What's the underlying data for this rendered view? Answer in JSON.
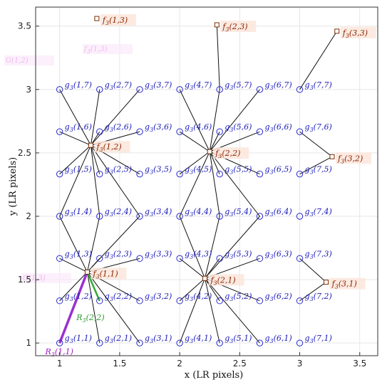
{
  "chart_data": {
    "type": "scatter",
    "title": "",
    "xlabel": "x (LR pixels)",
    "ylabel": "y (LR pixels)",
    "xlim": [
      0.8,
      3.65
    ],
    "ylim": [
      0.9,
      3.65
    ],
    "xticks": [
      "1",
      "1.5",
      "2",
      "2.5",
      "3",
      "3.5"
    ],
    "yticks": [
      "1",
      "1.5",
      "2",
      "2.5",
      "3",
      "3.5"
    ],
    "grid": true,
    "colors": {
      "g_marker": "#2a2acf",
      "g_label": "#1b1bb8",
      "f_marker": "#7a2d00",
      "f_label": "#8b2500",
      "f_label_bg": "#fbe6dc",
      "line": "#111111",
      "r_green": "#33aa33",
      "r_purple": "#9b30d0"
    },
    "g_points": [
      {
        "label": "g_3(1,1)",
        "x": 1.0,
        "y": 1.0
      },
      {
        "label": "g_3(1,2)",
        "x": 1.0,
        "y": 1.333
      },
      {
        "label": "g_3(1,3)",
        "x": 1.0,
        "y": 1.667
      },
      {
        "label": "g_3(1,4)",
        "x": 1.0,
        "y": 2.0
      },
      {
        "label": "g_3(1,5)",
        "x": 1.0,
        "y": 2.333
      },
      {
        "label": "g_3(1,6)",
        "x": 1.0,
        "y": 2.667
      },
      {
        "label": "g_3(1,7)",
        "x": 1.0,
        "y": 3.0
      },
      {
        "label": "g_3(2,1)",
        "x": 1.333,
        "y": 1.0
      },
      {
        "label": "g_3(2,2)",
        "x": 1.333,
        "y": 1.333
      },
      {
        "label": "g_3(2,3)",
        "x": 1.333,
        "y": 1.667
      },
      {
        "label": "g_3(2,4)",
        "x": 1.333,
        "y": 2.0
      },
      {
        "label": "g_3(2,5)",
        "x": 1.333,
        "y": 2.333
      },
      {
        "label": "g_3(2,6)",
        "x": 1.333,
        "y": 2.667
      },
      {
        "label": "g_3(2,7)",
        "x": 1.333,
        "y": 3.0
      },
      {
        "label": "g_3(3,1)",
        "x": 1.667,
        "y": 1.0
      },
      {
        "label": "g_3(3,2)",
        "x": 1.667,
        "y": 1.333
      },
      {
        "label": "g_3(3,3)",
        "x": 1.667,
        "y": 1.667
      },
      {
        "label": "g_3(3,4)",
        "x": 1.667,
        "y": 2.0
      },
      {
        "label": "g_3(3,5)",
        "x": 1.667,
        "y": 2.333
      },
      {
        "label": "g_3(3,6)",
        "x": 1.667,
        "y": 2.667
      },
      {
        "label": "g_3(3,7)",
        "x": 1.667,
        "y": 3.0
      },
      {
        "label": "g_3(4,1)",
        "x": 2.0,
        "y": 1.0
      },
      {
        "label": "g_3(4,2)",
        "x": 2.0,
        "y": 1.333
      },
      {
        "label": "g_3(4,3)",
        "x": 2.0,
        "y": 1.667
      },
      {
        "label": "g_3(4,4)",
        "x": 2.0,
        "y": 2.0
      },
      {
        "label": "g_3(4,5)",
        "x": 2.0,
        "y": 2.333
      },
      {
        "label": "g_3(4,6)",
        "x": 2.0,
        "y": 2.667
      },
      {
        "label": "g_3(4,7)",
        "x": 2.0,
        "y": 3.0
      },
      {
        "label": "g_3(5,1)",
        "x": 2.333,
        "y": 1.0
      },
      {
        "label": "g_3(5,2)",
        "x": 2.333,
        "y": 1.333
      },
      {
        "label": "g_3(5,3)",
        "x": 2.333,
        "y": 1.667
      },
      {
        "label": "g_3(5,4)",
        "x": 2.333,
        "y": 2.0
      },
      {
        "label": "g_3(5,5)",
        "x": 2.333,
        "y": 2.333
      },
      {
        "label": "g_3(5,6)",
        "x": 2.333,
        "y": 2.667
      },
      {
        "label": "g_3(5,7)",
        "x": 2.333,
        "y": 3.0
      },
      {
        "label": "g_3(6,1)",
        "x": 2.667,
        "y": 1.0
      },
      {
        "label": "g_3(6,2)",
        "x": 2.667,
        "y": 1.333
      },
      {
        "label": "g_3(6,3)",
        "x": 2.667,
        "y": 1.667
      },
      {
        "label": "g_3(6,4)",
        "x": 2.667,
        "y": 2.0
      },
      {
        "label": "g_3(6,5)",
        "x": 2.667,
        "y": 2.333
      },
      {
        "label": "g_3(6,6)",
        "x": 2.667,
        "y": 2.667
      },
      {
        "label": "g_3(6,7)",
        "x": 2.667,
        "y": 3.0
      },
      {
        "label": "g_3(7,1)",
        "x": 3.0,
        "y": 1.0
      },
      {
        "label": "g_3(7,2)",
        "x": 3.0,
        "y": 1.333
      },
      {
        "label": "g_3(7,3)",
        "x": 3.0,
        "y": 1.667
      },
      {
        "label": "g_3(7,4)",
        "x": 3.0,
        "y": 2.0
      },
      {
        "label": "g_3(7,5)",
        "x": 3.0,
        "y": 2.333
      },
      {
        "label": "g_3(7,6)",
        "x": 3.0,
        "y": 2.667
      },
      {
        "label": "g_3(7,7)",
        "x": 3.0,
        "y": 3.0
      }
    ],
    "f_points": [
      {
        "label": "f_3(1,1)",
        "x": 1.23,
        "y": 1.56
      },
      {
        "label": "f_3(2,1)",
        "x": 2.21,
        "y": 1.51
      },
      {
        "label": "f_3(3,1)",
        "x": 3.22,
        "y": 1.48
      },
      {
        "label": "f_3(1,2)",
        "x": 1.26,
        "y": 2.56
      },
      {
        "label": "f_3(2,2)",
        "x": 2.25,
        "y": 2.51
      },
      {
        "label": "f_3(3,2)",
        "x": 3.27,
        "y": 2.47
      },
      {
        "label": "f_3(1,3)",
        "x": 1.31,
        "y": 3.56
      },
      {
        "label": "f_3(2,3)",
        "x": 2.31,
        "y": 3.51
      },
      {
        "label": "f_3(3,3)",
        "x": 3.31,
        "y": 3.46
      }
    ],
    "connections": [
      {
        "f": 0,
        "g": [
          0,
          1,
          2,
          3,
          7,
          8,
          9,
          10,
          14,
          15,
          16,
          17
        ]
      },
      {
        "f": 1,
        "g": [
          21,
          22,
          23,
          24,
          28,
          29,
          30,
          31,
          35,
          36,
          37,
          38
        ]
      },
      {
        "f": 2,
        "g": [
          43,
          44
        ]
      },
      {
        "f": 3,
        "g": [
          3,
          4,
          5,
          6,
          10,
          11,
          12,
          13,
          17,
          18,
          19,
          20
        ]
      },
      {
        "f": 4,
        "g": [
          24,
          25,
          26,
          27,
          31,
          32,
          33,
          34,
          38,
          39,
          40,
          41
        ]
      },
      {
        "f": 5,
        "g": [
          46,
          47
        ]
      },
      {
        "f": 6,
        "g": []
      },
      {
        "f": 7,
        "g": [
          34
        ]
      },
      {
        "f": 8,
        "g": [
          48
        ]
      }
    ],
    "highlights": [
      {
        "label": "R_3(2,2)",
        "from": [
          1.23,
          1.56
        ],
        "to": [
          1.333,
          1.333
        ],
        "color": "#33aa33"
      },
      {
        "label": "R_3(1,1)",
        "from": [
          1.23,
          1.56
        ],
        "to": [
          1.0,
          1.0
        ],
        "color": "#9b30d0"
      }
    ],
    "ghost_labels": [
      "G(1,2)",
      "G(1,3)",
      "f_3(1,3)"
    ]
  }
}
